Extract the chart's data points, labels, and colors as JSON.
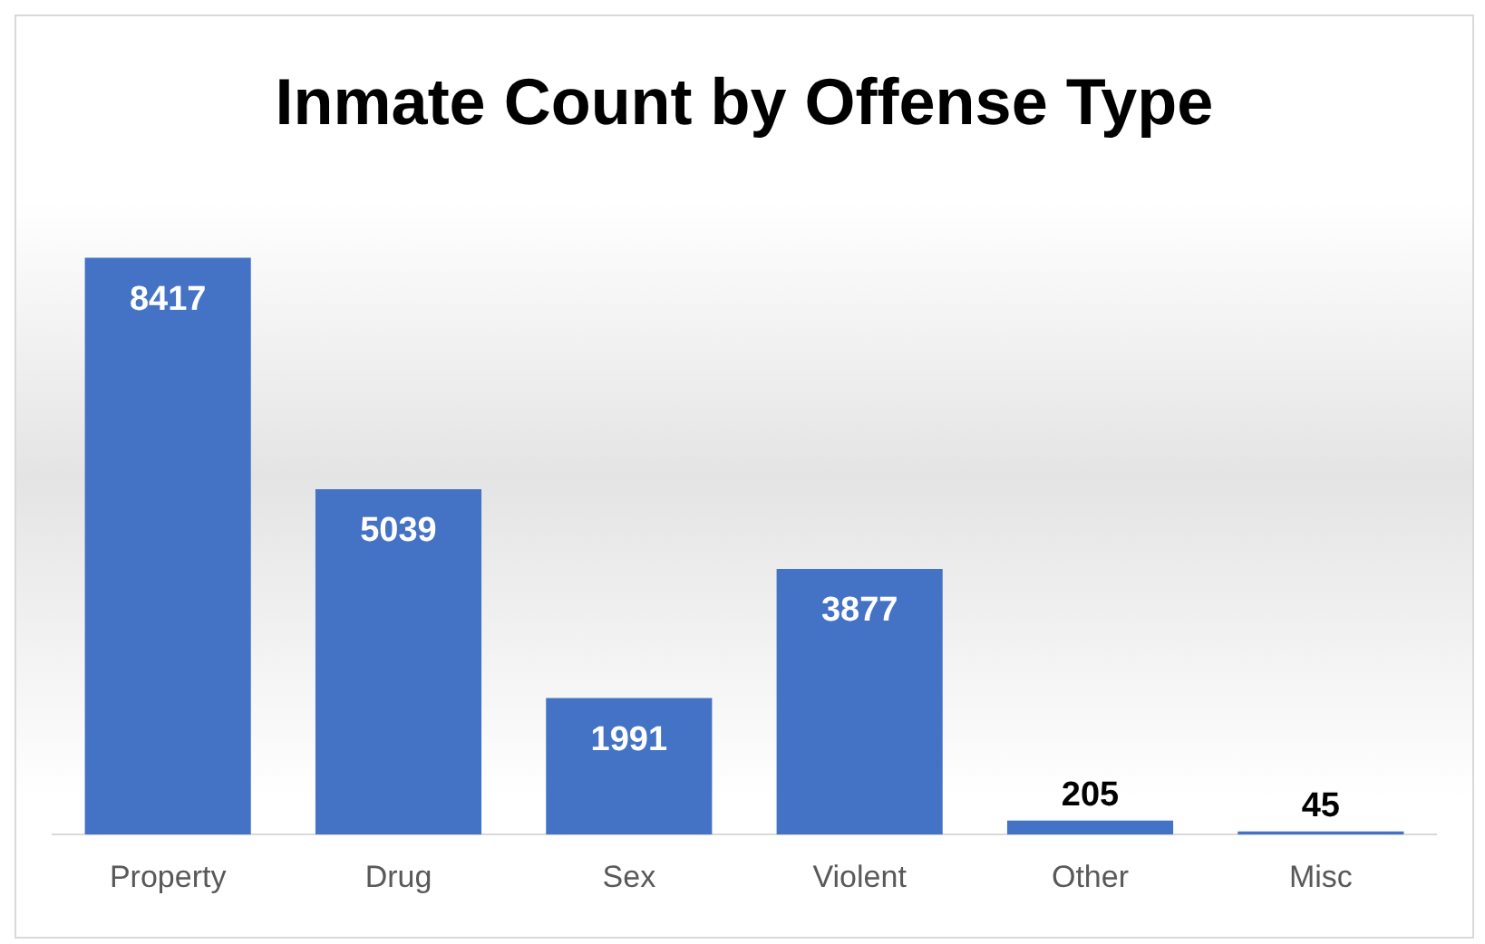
{
  "chart_data": {
    "type": "bar",
    "title": "Inmate Count by Offense Type",
    "categories": [
      "Property",
      "Drug",
      "Sex",
      "Violent",
      "Other",
      "Misc"
    ],
    "values": [
      8417,
      5039,
      1991,
      3877,
      205,
      45
    ],
    "color": "#4472c4",
    "data_labels": true,
    "grid": false,
    "legend": false
  }
}
